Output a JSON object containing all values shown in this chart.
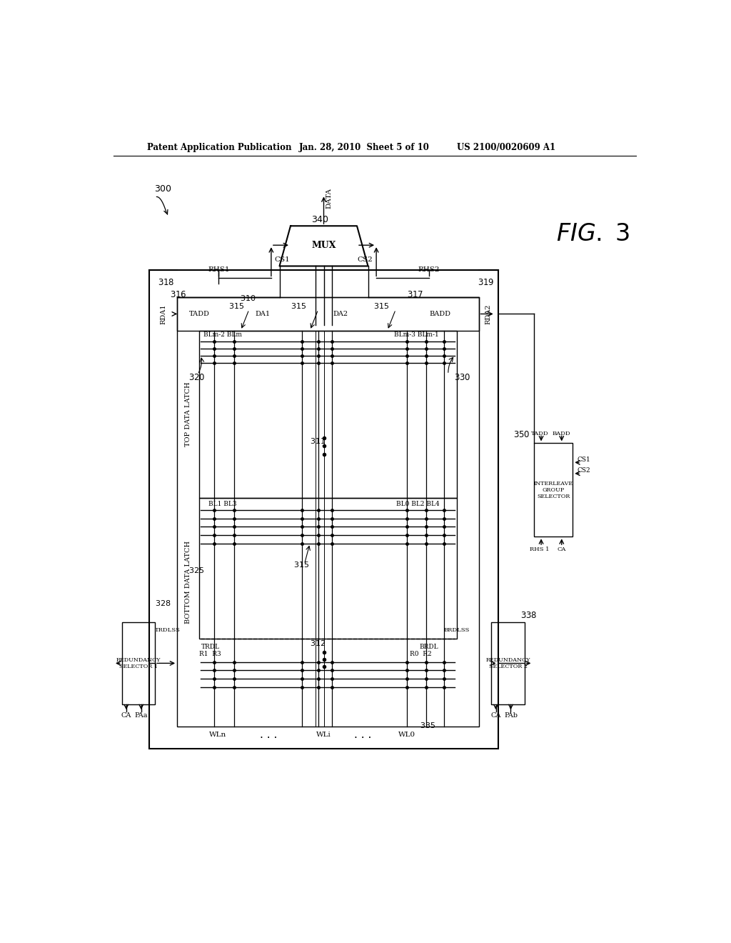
{
  "bg_color": "#ffffff",
  "header_text": "Patent Application Publication",
  "header_date": "Jan. 28, 2010  Sheet 5 of 10",
  "header_patent": "US 2100/0020609 A1",
  "fig_label": "FIG. 3",
  "lw": 1.0,
  "lw_thick": 1.5
}
